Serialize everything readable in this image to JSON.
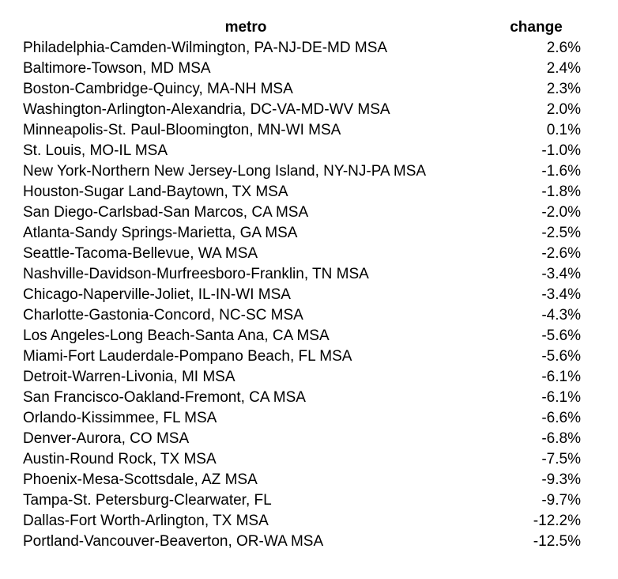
{
  "page": {
    "background_color": "#ffffff",
    "text_color": "#000000"
  },
  "chart_data": {
    "type": "table",
    "title": "",
    "columns": [
      "metro",
      "change"
    ],
    "legend": "none",
    "grid": false,
    "rows": [
      {
        "metro": "Philadelphia-Camden-Wilmington, PA-NJ-DE-MD MSA",
        "change": "2.6%"
      },
      {
        "metro": "Baltimore-Towson, MD MSA",
        "change": "2.4%"
      },
      {
        "metro": "Boston-Cambridge-Quincy, MA-NH MSA",
        "change": "2.3%"
      },
      {
        "metro": "Washington-Arlington-Alexandria, DC-VA-MD-WV MSA",
        "change": "2.0%"
      },
      {
        "metro": "Minneapolis-St. Paul-Bloomington, MN-WI MSA",
        "change": "0.1%"
      },
      {
        "metro": "St. Louis, MO-IL MSA",
        "change": "-1.0%"
      },
      {
        "metro": "New York-Northern New Jersey-Long Island, NY-NJ-PA MSA",
        "change": "-1.6%"
      },
      {
        "metro": "Houston-Sugar Land-Baytown, TX MSA",
        "change": "-1.8%"
      },
      {
        "metro": "San Diego-Carlsbad-San Marcos, CA MSA",
        "change": "-2.0%"
      },
      {
        "metro": "Atlanta-Sandy Springs-Marietta, GA MSA",
        "change": "-2.5%"
      },
      {
        "metro": "Seattle-Tacoma-Bellevue, WA MSA",
        "change": "-2.6%"
      },
      {
        "metro": "Nashville-Davidson-Murfreesboro-Franklin, TN MSA",
        "change": "-3.4%"
      },
      {
        "metro": "Chicago-Naperville-Joliet, IL-IN-WI MSA",
        "change": "-3.4%"
      },
      {
        "metro": "Charlotte-Gastonia-Concord, NC-SC MSA",
        "change": "-4.3%"
      },
      {
        "metro": "Los Angeles-Long Beach-Santa Ana, CA MSA",
        "change": "-5.6%"
      },
      {
        "metro": "Miami-Fort Lauderdale-Pompano Beach, FL MSA",
        "change": "-5.6%"
      },
      {
        "metro": "Detroit-Warren-Livonia, MI MSA",
        "change": "-6.1%"
      },
      {
        "metro": "San Francisco-Oakland-Fremont, CA MSA",
        "change": "-6.1%"
      },
      {
        "metro": "Orlando-Kissimmee, FL MSA",
        "change": "-6.6%"
      },
      {
        "metro": "Denver-Aurora, CO MSA",
        "change": "-6.8%"
      },
      {
        "metro": "Austin-Round Rock, TX MSA",
        "change": "-7.5%"
      },
      {
        "metro": "Phoenix-Mesa-Scottsdale, AZ MSA",
        "change": "-9.3%"
      },
      {
        "metro": "Tampa-St. Petersburg-Clearwater, FL",
        "change": "-9.7%"
      },
      {
        "metro": "Dallas-Fort Worth-Arlington, TX MSA",
        "change": "-12.2%"
      },
      {
        "metro": "Portland-Vancouver-Beaverton, OR-WA MSA",
        "change": "-12.5%"
      }
    ],
    "change_pct_numeric": [
      2.6,
      2.4,
      2.3,
      2.0,
      0.1,
      -1.0,
      -1.6,
      -1.8,
      -2.0,
      -2.5,
      -2.6,
      -3.4,
      -3.4,
      -4.3,
      -5.6,
      -5.6,
      -6.1,
      -6.1,
      -6.6,
      -6.8,
      -7.5,
      -9.3,
      -9.7,
      -12.2,
      -12.5
    ]
  }
}
